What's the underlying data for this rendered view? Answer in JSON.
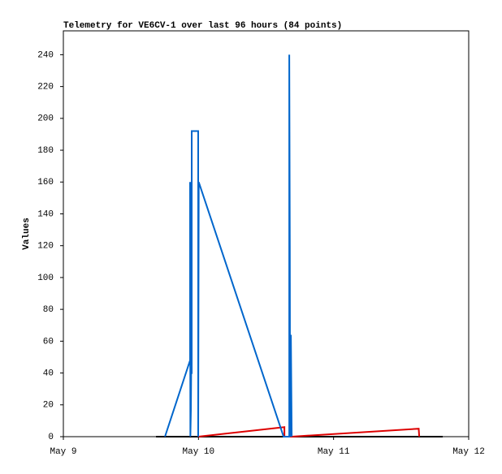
{
  "chart_data": {
    "type": "line",
    "title": "Telemetry for VE6CV-1 over last 96 hours (84 points)",
    "y_label": "Values",
    "xlim": [
      0,
      3
    ],
    "xticks": [
      {
        "value": 0,
        "label": "May 9"
      },
      {
        "value": 1,
        "label": "May 10"
      },
      {
        "value": 2,
        "label": "May 11"
      },
      {
        "value": 3,
        "label": "May 12"
      }
    ],
    "ylim": [
      0,
      255
    ],
    "yticks": [
      0,
      20,
      40,
      60,
      80,
      100,
      120,
      140,
      160,
      180,
      200,
      220,
      240
    ],
    "grid": false,
    "series": [
      {
        "color": "#000000",
        "x": [
          0.686,
          2.808
        ],
        "values": [
          0,
          0
        ]
      },
      {
        "color": "#dd0000",
        "x": [
          1.0,
          1.636,
          1.636,
          1.69,
          2.63,
          2.634
        ],
        "values": [
          0,
          6,
          0,
          0,
          5,
          0
        ]
      },
      {
        "color": "#0066cc",
        "x": [
          0.752,
          0.938,
          0.938,
          0.94,
          0.944,
          0.946,
          0.95,
          0.95,
          0.998,
          0.998,
          1.002,
          1.63,
          1.672,
          1.672,
          1.676,
          1.678,
          1.684,
          1.69
        ],
        "values": [
          0,
          48,
          160,
          0,
          17,
          40,
          40,
          192,
          192,
          0,
          160,
          0,
          0,
          240,
          120,
          0,
          64,
          0
        ]
      }
    ]
  }
}
